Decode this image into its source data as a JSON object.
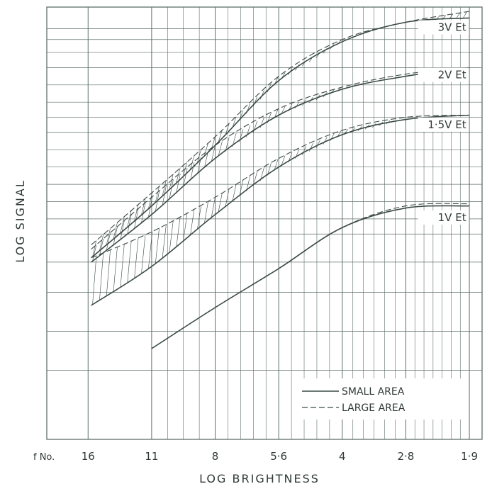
{
  "chart_data": {
    "type": "line",
    "title": "",
    "xlabel": "LOG BRIGHTNESS",
    "ylabel": "LOG SIGNAL",
    "x_tick_prefix": "f No.",
    "x_ticks": [
      {
        "x": 0,
        "label": "16"
      },
      {
        "x": 1,
        "label": "11"
      },
      {
        "x": 2,
        "label": "8"
      },
      {
        "x": 3,
        "label": "5·6"
      },
      {
        "x": 4,
        "label": "4"
      },
      {
        "x": 5,
        "label": "2·8"
      },
      {
        "x": 6,
        "label": "1·9"
      }
    ],
    "xlim": [
      -0.65,
      6.2
    ],
    "ylim": [
      0,
      100
    ],
    "y_ticks_labeled": false,
    "grid": true,
    "legend": {
      "position": "bottom-right",
      "entries": [
        {
          "label": "SMALL AREA",
          "style": "solid"
        },
        {
          "label": "LARGE AREA",
          "style": "dashed"
        }
      ]
    },
    "series": [
      {
        "name": "3V Et",
        "small_area": {
          "x": [
            0.05,
            1,
            2,
            3,
            4,
            5,
            6
          ],
          "y": [
            42,
            54,
            68,
            83,
            92,
            96.5,
            97.5
          ]
        },
        "large_area": {
          "x": [
            0.05,
            1,
            2,
            3,
            4,
            5,
            6
          ],
          "y": [
            45,
            57,
            70,
            84,
            92.5,
            96.5,
            99
          ]
        }
      },
      {
        "name": "2V Et",
        "small_area": {
          "x": [
            0.05,
            1,
            2,
            3,
            4,
            5,
            6
          ],
          "y": [
            41,
            52,
            65,
            75,
            81,
            84,
            86
          ]
        },
        "large_area": {
          "x": [
            0.05,
            1,
            2,
            3,
            4,
            5,
            6
          ],
          "y": [
            44,
            56,
            68,
            76.5,
            81.5,
            84.5,
            86
          ]
        }
      },
      {
        "name": "1·5V Et",
        "small_area": {
          "x": [
            0.05,
            1,
            2,
            3,
            4,
            5,
            6
          ],
          "y": [
            31,
            40,
            52,
            63,
            70.5,
            74,
            75
          ]
        },
        "large_area": {
          "x": [
            0.05,
            1,
            2,
            3,
            4,
            5,
            6
          ],
          "y": [
            42,
            48,
            56,
            65,
            71.5,
            74.5,
            75
          ]
        }
      },
      {
        "name": "1V Et",
        "small_area": {
          "x": [
            1.0,
            2,
            3,
            4,
            5,
            6
          ],
          "y": [
            21,
            30.5,
            39.5,
            49,
            53.5,
            54
          ]
        },
        "large_area": {
          "x": [
            1.0,
            2,
            3,
            4,
            5,
            6
          ],
          "y": [
            21,
            30.5,
            39.5,
            49,
            54,
            54.5
          ]
        }
      }
    ]
  },
  "colors": {
    "background": "#ffffff",
    "grid": "#5f6f68",
    "curve": "#3b4a45",
    "text": "#2f3a36"
  }
}
